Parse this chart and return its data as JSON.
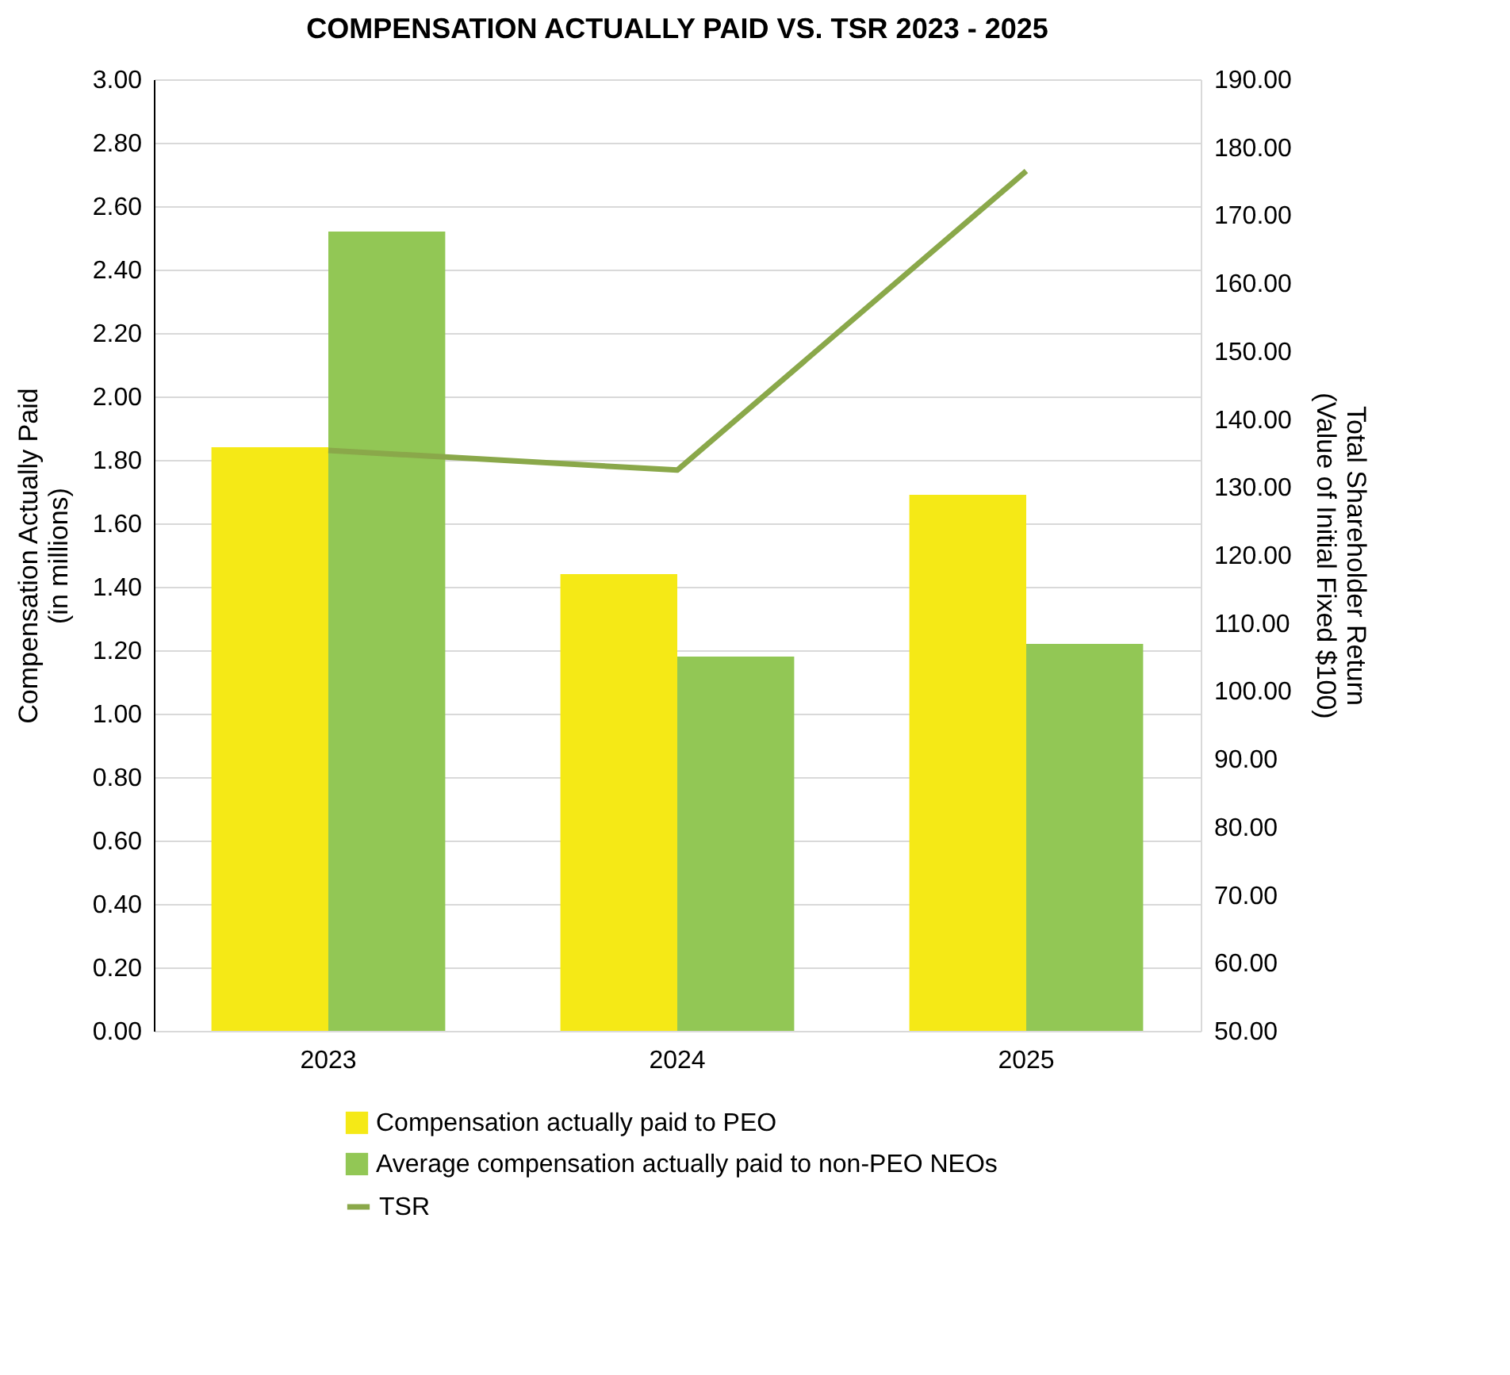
{
  "chart_data": {
    "type": "bar",
    "title": "COMPENSATION ACTUALLY PAID VS. TSR 2023 - 2025",
    "ylabel": "Compensation Actually Paid\n(in millions)",
    "y2label": "Total Shareholder Return\n(Value of Initial Fixed $100)",
    "categories": [
      "2023",
      "2024",
      "2025"
    ],
    "series": [
      {
        "name": "Compensation actually paid to PEO",
        "color": "#f5e916",
        "values": [
          1.84,
          1.44,
          1.69
        ]
      },
      {
        "name": "Average compensation actually paid to non-PEO NEOs",
        "color": "#92c755",
        "values": [
          2.52,
          1.18,
          1.22
        ]
      },
      {
        "name": "TSR",
        "type": "line",
        "axis": "y2",
        "color": "#8aa84a",
        "values": [
          135.4,
          132.5,
          176.5
        ]
      }
    ],
    "ylim": [
      0,
      3
    ],
    "yticks": [
      {
        "value": 0,
        "label": "0.00"
      },
      {
        "value": 0.2,
        "label": "0.20"
      },
      {
        "value": 0.4,
        "label": "0.40"
      },
      {
        "value": 0.6,
        "label": "0.60"
      },
      {
        "value": 0.8,
        "label": "0.80"
      },
      {
        "value": 1,
        "label": "1.00"
      },
      {
        "value": 1.2,
        "label": "1.20"
      },
      {
        "value": 1.4,
        "label": "1.40"
      },
      {
        "value": 1.6,
        "label": "1.60"
      },
      {
        "value": 1.8,
        "label": "1.80"
      },
      {
        "value": 2,
        "label": "2.00"
      },
      {
        "value": 2.2,
        "label": "2.20"
      },
      {
        "value": 2.4,
        "label": "2.40"
      },
      {
        "value": 2.6,
        "label": "2.60"
      },
      {
        "value": 2.8,
        "label": "2.80"
      },
      {
        "value": 3,
        "label": "3.00"
      }
    ],
    "y2lim": [
      50,
      190
    ],
    "y2ticks": [
      {
        "value": 50,
        "label": "50.00"
      },
      {
        "value": 60,
        "label": "60.00"
      },
      {
        "value": 70,
        "label": "70.00"
      },
      {
        "value": 80,
        "label": "80.00"
      },
      {
        "value": 90,
        "label": "90.00"
      },
      {
        "value": 100,
        "label": "100.00"
      },
      {
        "value": 110,
        "label": "110.00"
      },
      {
        "value": 120,
        "label": "120.00"
      },
      {
        "value": 130,
        "label": "130.00"
      },
      {
        "value": 140,
        "label": "140.00"
      },
      {
        "value": 150,
        "label": "150.00"
      },
      {
        "value": 160,
        "label": "160.00"
      },
      {
        "value": 170,
        "label": "170.00"
      },
      {
        "value": 180,
        "label": "180.00"
      },
      {
        "value": 190,
        "label": "190.00"
      }
    ],
    "grid": "y",
    "legend": "bottom"
  }
}
